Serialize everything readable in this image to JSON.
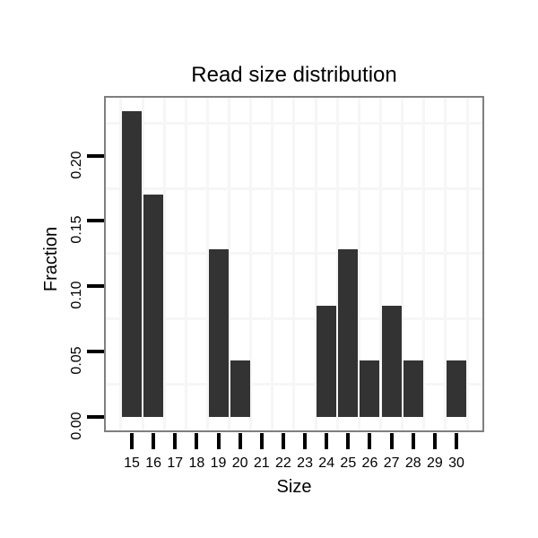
{
  "chart_data": {
    "type": "bar",
    "title": "Read size distribution",
    "xlabel": "Size",
    "ylabel": "Fraction",
    "categories": [
      15,
      16,
      17,
      18,
      19,
      20,
      21,
      22,
      23,
      24,
      25,
      26,
      27,
      28,
      29,
      30
    ],
    "values": [
      0.234,
      0.17,
      0,
      0,
      0.128,
      0.043,
      0,
      0,
      0,
      0.085,
      0.128,
      0.043,
      0.085,
      0.043,
      0,
      0.043
    ],
    "ytick_values": [
      0.0,
      0.05,
      0.1,
      0.15,
      0.2
    ],
    "ytick_labels": [
      "0.00",
      "0.05",
      "0.10",
      "0.15",
      "0.20"
    ],
    "ylim": [
      -0.0117,
      0.2457
    ],
    "y_minor_gridlines": [
      0.025,
      0.075,
      0.125,
      0.175,
      0.225
    ],
    "grid": "minor gridlines only, very light, on white panel",
    "legend": "none",
    "colors": {
      "bar_fill": "#333333",
      "panel_border": "#7f7f7f",
      "gridline": "#f6f6f6",
      "tick": "#000000",
      "text": "#000000",
      "background": "#ffffff"
    }
  }
}
